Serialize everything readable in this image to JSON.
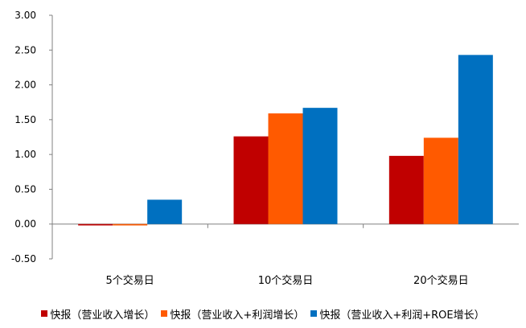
{
  "chart_data": {
    "type": "bar",
    "categories": [
      "5个交易日",
      "10个交易日",
      "20个交易日"
    ],
    "series": [
      {
        "name": "快报（营业收入增长）",
        "values": [
          -0.02,
          1.26,
          0.98
        ],
        "color": "#c00000"
      },
      {
        "name": "快报（营业收入+利润增长）",
        "values": [
          -0.02,
          1.59,
          1.24
        ],
        "color": "#ff5a00"
      },
      {
        "name": "快报（营业收入+利润+ROE增长）",
        "values": [
          0.35,
          1.67,
          2.43
        ],
        "color": "#0070c0"
      }
    ],
    "ylim": [
      -0.5,
      3.0
    ],
    "yticks": [
      "3.00",
      "2.50",
      "2.00",
      "1.50",
      "1.00",
      "0.50",
      "0.00",
      "-0.50"
    ],
    "ytick_values": [
      3.0,
      2.5,
      2.0,
      1.5,
      1.0,
      0.5,
      0.0,
      -0.5
    ],
    "grid": false,
    "legend_position": "bottom"
  }
}
